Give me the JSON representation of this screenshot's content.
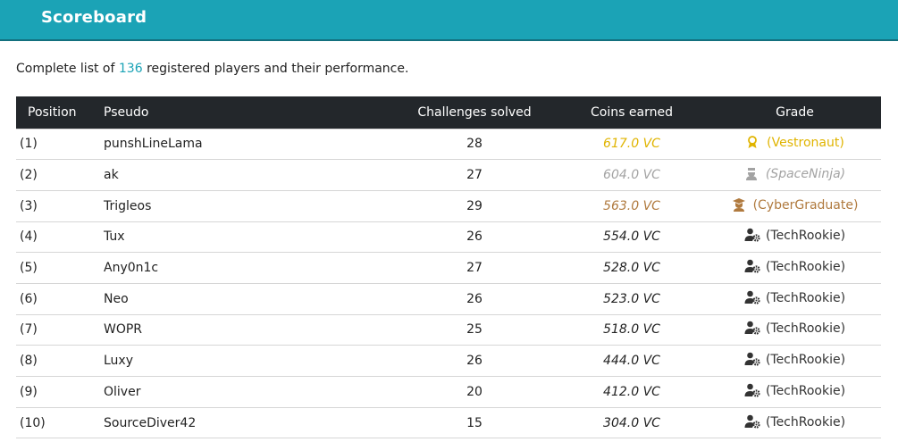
{
  "header": {
    "title": "Scoreboard"
  },
  "intro": {
    "before": "Complete list of ",
    "count": "136",
    "after": " registered players and their performance."
  },
  "table": {
    "columns": [
      "Position",
      "Pseudo",
      "Challenges solved",
      "Coins earned",
      "Grade"
    ],
    "rows": [
      {
        "position": "(1)",
        "pseudo": "punshLineLama",
        "challenges": "28",
        "coins": "617.0 VC",
        "grade": "(Vestronaut)",
        "tier": "gold",
        "icon": "medal-icon"
      },
      {
        "position": "(2)",
        "pseudo": "ak",
        "challenges": "27",
        "coins": "604.0 VC",
        "grade": "(SpaceNinja)",
        "tier": "silver",
        "icon": "ninja-icon"
      },
      {
        "position": "(3)",
        "pseudo": "Trigleos",
        "challenges": "29",
        "coins": "563.0 VC",
        "grade": "(CyberGraduate)",
        "tier": "bronze",
        "icon": "graduate-icon"
      },
      {
        "position": "(4)",
        "pseudo": "Tux",
        "challenges": "26",
        "coins": "554.0 VC",
        "grade": "(TechRookie)",
        "tier": "normal",
        "icon": "user-gear-icon"
      },
      {
        "position": "(5)",
        "pseudo": "Any0n1c",
        "challenges": "27",
        "coins": "528.0 VC",
        "grade": "(TechRookie)",
        "tier": "normal",
        "icon": "user-gear-icon"
      },
      {
        "position": "(6)",
        "pseudo": "Neo",
        "challenges": "26",
        "coins": "523.0 VC",
        "grade": "(TechRookie)",
        "tier": "normal",
        "icon": "user-gear-icon"
      },
      {
        "position": "(7)",
        "pseudo": "WOPR",
        "challenges": "25",
        "coins": "518.0 VC",
        "grade": "(TechRookie)",
        "tier": "normal",
        "icon": "user-gear-icon"
      },
      {
        "position": "(8)",
        "pseudo": "Luxy",
        "challenges": "26",
        "coins": "444.0 VC",
        "grade": "(TechRookie)",
        "tier": "normal",
        "icon": "user-gear-icon"
      },
      {
        "position": "(9)",
        "pseudo": "Oliver",
        "challenges": "20",
        "coins": "412.0 VC",
        "grade": "(TechRookie)",
        "tier": "normal",
        "icon": "user-gear-icon"
      },
      {
        "position": "(10)",
        "pseudo": "SourceDiver42",
        "challenges": "15",
        "coins": "304.0 VC",
        "grade": "(TechRookie)",
        "tier": "normal",
        "icon": "user-gear-icon"
      }
    ]
  },
  "colors": {
    "header_bg": "#1ba3b6",
    "table_head_bg": "#23272b",
    "gold": "#e0b400",
    "silver": "#a3a3a3",
    "bronze": "#b07a3e",
    "accent": "#1ba3b6"
  }
}
